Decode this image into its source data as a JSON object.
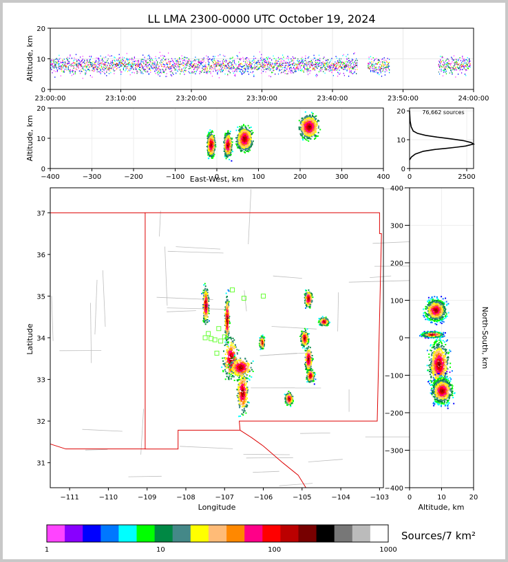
{
  "title": "LL LMA 2300-0000 UTC October 19, 2024",
  "colorbar_label": "Sources/7 km²",
  "chart_data": [
    {
      "id": "time_altitude",
      "type": "scatter",
      "ylabel": "Altitude, km",
      "ylim": [
        0,
        20
      ],
      "yticks": [
        "0",
        "10",
        "20"
      ],
      "xticks": [
        "23:00:00",
        "23:10:00",
        "23:20:00",
        "23:30:00",
        "23:40:00",
        "23:50:00",
        "24:00:00"
      ],
      "grid": true,
      "active_segments_minutes": [
        [
          0,
          43.5
        ],
        [
          45,
          48
        ],
        [
          55,
          59.5
        ]
      ],
      "altitude_center_km": 8
    },
    {
      "id": "eastwest_altitude",
      "type": "heatmap",
      "xlabel": "East-West, km",
      "ylabel": "Altitude, km",
      "xlim": [
        -400,
        400
      ],
      "ylim": [
        0,
        20
      ],
      "xticks": [
        "−400",
        "−300",
        "−200",
        "−100",
        "0",
        "100",
        "200",
        "300",
        "400"
      ],
      "yticks": [
        "0",
        "10",
        "20"
      ],
      "clusters_km": [
        {
          "x": -15,
          "w": 10,
          "alt": 8
        },
        {
          "x": 25,
          "w": 10,
          "alt": 8
        },
        {
          "x": 65,
          "w": 20,
          "alt": 10
        },
        {
          "x": 220,
          "w": 25,
          "alt": 14
        }
      ]
    },
    {
      "id": "altitude_histogram",
      "type": "line",
      "annotation": "76,662 sources",
      "xlim": [
        0,
        2800
      ],
      "ylim": [
        0,
        21
      ],
      "xticks": [
        "0",
        "2500"
      ],
      "yticks": [
        "0",
        "10",
        "20"
      ],
      "x": [
        0,
        80,
        250,
        600,
        1100,
        1600,
        2050,
        2450,
        2700,
        2800,
        2700,
        2350,
        1800,
        1200,
        700,
        350,
        160,
        70,
        25,
        0
      ],
      "y": [
        3,
        4,
        5,
        6,
        6.6,
        7,
        7.4,
        7.8,
        8.3,
        8.5,
        9,
        9.7,
        10.3,
        10.9,
        11.5,
        12.2,
        13,
        14.5,
        16.5,
        20
      ]
    },
    {
      "id": "plan_view",
      "type": "heatmap",
      "xlabel": "Longitude",
      "ylabel": "Latitude",
      "xlim": [
        -111.5,
        -102.9
      ],
      "ylim": [
        30.4,
        37.6
      ],
      "xticks": [
        "−111",
        "−110",
        "−109",
        "−108",
        "−107",
        "−106",
        "−105",
        "−104",
        "−103"
      ],
      "yticks": [
        "31",
        "32",
        "33",
        "34",
        "35",
        "36",
        "37"
      ],
      "stations": [
        [
          -107.5,
          34
        ],
        [
          -107.42,
          34.1
        ],
        [
          -107.35,
          33.98
        ],
        [
          -107.25,
          33.95
        ],
        [
          -107.15,
          34.22
        ],
        [
          -107.1,
          33.92
        ],
        [
          -107.0,
          34.02
        ],
        [
          -107.2,
          33.63
        ],
        [
          -106.8,
          35.15
        ],
        [
          -106.5,
          34.95
        ],
        [
          -106.0,
          35
        ]
      ]
    },
    {
      "id": "northsouth_altitude",
      "type": "heatmap",
      "xlabel": "Altitude, km",
      "ylabel": "North-South, km",
      "xlim": [
        0,
        20
      ],
      "ylim": [
        -400,
        400
      ],
      "xticks": [
        "0",
        "10",
        "20"
      ],
      "yticks": [
        "−400",
        "−300",
        "−200",
        "−100",
        "0",
        "100",
        "200",
        "300",
        "400"
      ]
    },
    {
      "id": "colorbar",
      "type": "heatmap",
      "scale": "log",
      "range": [
        1,
        1000
      ],
      "ticks": [
        "1",
        "10",
        "100",
        "1000"
      ],
      "colors": [
        "#ff44ff",
        "#8800ff",
        "#0000ff",
        "#0077ff",
        "#00ffff",
        "#00ff00",
        "#008844",
        "#448888",
        "#ffff00",
        "#ffbb77",
        "#ff8800",
        "#ff0088",
        "#ff0000",
        "#bb0000",
        "#770000",
        "#000000",
        "#777777",
        "#bbbbbb",
        "#ffffff"
      ]
    }
  ]
}
